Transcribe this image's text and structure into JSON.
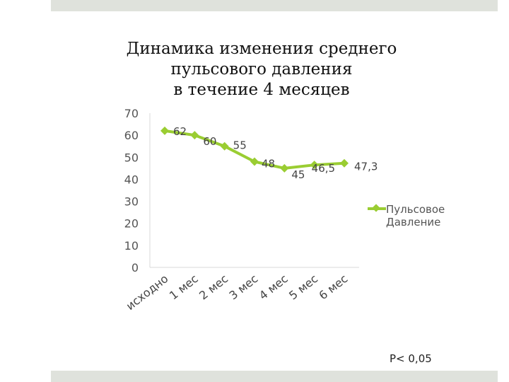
{
  "chart_data": {
    "type": "line",
    "title_lines": [
      "Динамика изменения среднего",
      "пульсового давления",
      "в течение 4 месяцев"
    ],
    "categories": [
      "исходно",
      "1 мес",
      "2 мес",
      "3 мес",
      "4 мес",
      "5 мес",
      "6 мес"
    ],
    "series": [
      {
        "name": "Пульсовое Давление",
        "values": [
          62,
          60,
          55,
          48,
          45,
          46.5,
          47.3
        ],
        "labels": [
          "62",
          "60",
          "55",
          "48",
          "45",
          "46,5",
          "47,3"
        ]
      }
    ],
    "yticks": [
      "0",
      "10",
      "20",
      "30",
      "40",
      "50",
      "60",
      "70"
    ],
    "ylim": [
      0,
      70
    ],
    "legend_position": "right",
    "grid": false,
    "line_color": "#9acd32"
  },
  "annotation": "P< 0,05"
}
